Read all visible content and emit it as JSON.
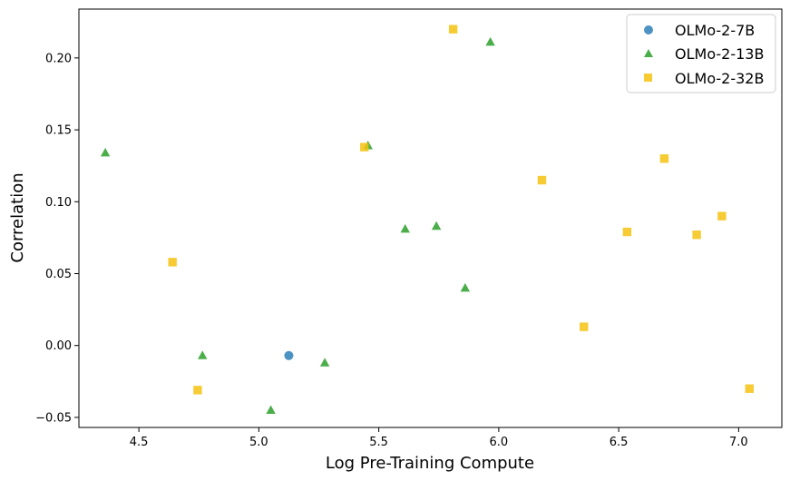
{
  "chart_data": {
    "type": "scatter",
    "xlabel": "Log Pre-Training Compute",
    "ylabel": "Correlation",
    "xlim": [
      4.25,
      7.18
    ],
    "ylim": [
      -0.057,
      0.234
    ],
    "xticks": [
      4.5,
      5.0,
      5.5,
      6.0,
      6.5,
      7.0
    ],
    "xtick_labels": [
      "4.5",
      "5.0",
      "5.5",
      "6.0",
      "6.5",
      "7.0"
    ],
    "yticks": [
      -0.05,
      0.0,
      0.05,
      0.1,
      0.15,
      0.2
    ],
    "ytick_labels": [
      "−0.05",
      "0.00",
      "0.05",
      "0.10",
      "0.15",
      "0.20"
    ],
    "grid": false,
    "legend_position": "top-right",
    "series": [
      {
        "name": "OLMo-2-7B",
        "marker": "circle",
        "color": "#1f77b4",
        "points": [
          {
            "x": 5.125,
            "y": -0.007
          }
        ]
      },
      {
        "name": "OLMo-2-13B",
        "marker": "triangle",
        "color": "#2ca02c",
        "points": [
          {
            "x": 4.36,
            "y": 0.134
          },
          {
            "x": 4.765,
            "y": -0.007
          },
          {
            "x": 5.05,
            "y": -0.045
          },
          {
            "x": 5.275,
            "y": -0.012
          },
          {
            "x": 5.455,
            "y": 0.139
          },
          {
            "x": 5.61,
            "y": 0.081
          },
          {
            "x": 5.74,
            "y": 0.083
          },
          {
            "x": 5.86,
            "y": 0.04
          },
          {
            "x": 5.965,
            "y": 0.211
          }
        ]
      },
      {
        "name": "OLMo-2-32B",
        "marker": "square",
        "color": "#f5c211",
        "points": [
          {
            "x": 4.64,
            "y": 0.058
          },
          {
            "x": 4.745,
            "y": -0.031
          },
          {
            "x": 5.44,
            "y": 0.138
          },
          {
            "x": 5.81,
            "y": 0.22
          },
          {
            "x": 6.18,
            "y": 0.115
          },
          {
            "x": 6.355,
            "y": 0.013
          },
          {
            "x": 6.535,
            "y": 0.079
          },
          {
            "x": 6.69,
            "y": 0.13
          },
          {
            "x": 6.825,
            "y": 0.077
          },
          {
            "x": 6.93,
            "y": 0.09
          },
          {
            "x": 7.045,
            "y": -0.03
          }
        ]
      }
    ]
  }
}
